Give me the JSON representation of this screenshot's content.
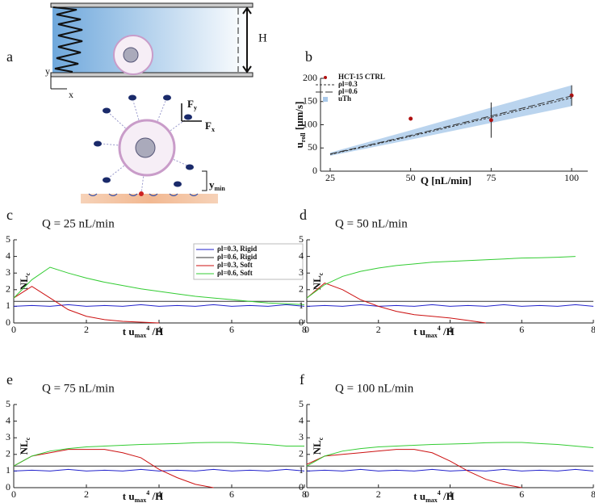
{
  "diagram": {
    "label": "a",
    "height_label": "H",
    "y_axis": "y",
    "x_axis": "x",
    "force_y": [
      "F",
      "y"
    ],
    "force_x": [
      "F",
      "x"
    ],
    "gap": [
      "y",
      "min"
    ]
  },
  "chart_data": [
    {
      "type": "scatter",
      "label": "b",
      "xlabel": "Q [nL/min]",
      "ylabel": [
        "u",
        "roll",
        " [μm/s]"
      ],
      "x": [
        25,
        50,
        75,
        100
      ],
      "xlim": [
        22,
        105
      ],
      "xticks": [
        25,
        50,
        75,
        100
      ],
      "ylim": [
        0,
        200
      ],
      "yticks": [
        0,
        50,
        100,
        150,
        200
      ],
      "series": [
        {
          "name": "HCT-15 CTRL",
          "color": "#b01010",
          "kind": "points",
          "values": [
            null,
            113,
            110,
            163
          ],
          "errors": [
            null,
            4,
            38,
            22
          ]
        },
        {
          "name": "ρl=0.3",
          "color": "#333333",
          "kind": "line",
          "dash": "3,2",
          "values": [
            36,
            75,
            116,
            158
          ]
        },
        {
          "name": "ρl=0.6",
          "color": "#333333",
          "kind": "line",
          "dash": "9,3",
          "values": [
            37,
            77,
            119,
            162
          ]
        },
        {
          "name": "uTh",
          "color": "#a9c9ea",
          "kind": "band",
          "lower": [
            33,
            68,
            104,
            140
          ],
          "upper": [
            40,
            88,
            137,
            185
          ]
        }
      ]
    },
    {
      "type": "line",
      "label": "c",
      "title": "Q = 25 nL/min",
      "xlabel": [
        "t u",
        "max",
        "4",
        " /H"
      ],
      "ylabel": [
        "NL",
        "c"
      ],
      "legend": true,
      "x": [
        0,
        0.5,
        1,
        1.5,
        2,
        2.5,
        3,
        3.5,
        4,
        4.5,
        5,
        5.5,
        6,
        6.5,
        7,
        7.5,
        8
      ],
      "xlim": [
        0,
        8
      ],
      "xticks": [
        0,
        2,
        4,
        6,
        8
      ],
      "ylim": [
        0,
        5
      ],
      "yticks": [
        0,
        1,
        2,
        3,
        4,
        5
      ],
      "series": [
        {
          "name": "ρl=0.3, Rigid",
          "color": "#2222cc",
          "values": [
            1.0,
            1.05,
            1.0,
            1.1,
            1.0,
            1.05,
            1.0,
            1.1,
            1.0,
            1.05,
            1.0,
            1.1,
            1.0,
            1.05,
            1.0,
            1.1,
            1.0
          ]
        },
        {
          "name": "ρl=0.6, Rigid",
          "color": "#333333",
          "values": [
            1.3,
            1.3,
            1.3,
            1.3,
            1.3,
            1.3,
            1.3,
            1.3,
            1.3,
            1.3,
            1.3,
            1.3,
            1.3,
            1.3,
            1.3,
            1.3,
            1.3
          ]
        },
        {
          "name": "ρl=0.3, Soft",
          "color": "#cc1111",
          "values": [
            1.5,
            2.2,
            1.5,
            0.8,
            0.4,
            0.2,
            0.1,
            0.05,
            0,
            null,
            null,
            null,
            null,
            null,
            null,
            null,
            null
          ]
        },
        {
          "name": "ρl=0.6, Soft",
          "color": "#33cc33",
          "values": [
            1.5,
            2.6,
            3.35,
            3.0,
            2.7,
            2.45,
            2.25,
            2.05,
            1.9,
            1.75,
            1.6,
            1.5,
            1.4,
            1.3,
            1.2,
            1.15,
            1.1
          ]
        }
      ]
    },
    {
      "type": "line",
      "label": "d",
      "title": "Q = 50 nL/min",
      "xlabel": [
        "t u",
        "max",
        "4",
        " /H"
      ],
      "ylabel": [
        "NL",
        "c"
      ],
      "x": [
        0,
        0.5,
        1,
        1.5,
        2,
        2.5,
        3,
        3.5,
        4,
        4.5,
        5,
        5.5,
        6,
        6.5,
        7,
        7.5,
        8
      ],
      "xlim": [
        0,
        8
      ],
      "xticks": [
        0,
        2,
        4,
        6,
        8
      ],
      "ylim": [
        0,
        5
      ],
      "yticks": [
        0,
        1,
        2,
        3,
        4,
        5
      ],
      "series": [
        {
          "color": "#2222cc",
          "values": [
            1.0,
            1.05,
            1.0,
            1.1,
            1.0,
            1.05,
            1.0,
            1.1,
            1.0,
            1.05,
            1.0,
            1.1,
            1.0,
            1.05,
            1.0,
            1.1,
            1.0
          ]
        },
        {
          "color": "#333333",
          "values": [
            1.3,
            1.3,
            1.3,
            1.3,
            1.3,
            1.3,
            1.3,
            1.3,
            1.3,
            1.3,
            1.3,
            1.3,
            1.3,
            1.3,
            1.3,
            1.3,
            1.3
          ]
        },
        {
          "color": "#cc1111",
          "values": [
            1.5,
            2.4,
            2.0,
            1.4,
            1.0,
            0.7,
            0.5,
            0.4,
            0.3,
            0.15,
            0,
            null,
            null,
            null,
            null,
            null,
            null
          ]
        },
        {
          "color": "#33cc33",
          "values": [
            1.5,
            2.3,
            2.8,
            3.1,
            3.3,
            3.45,
            3.55,
            3.65,
            3.7,
            3.75,
            3.8,
            3.85,
            3.9,
            3.92,
            3.95,
            4.0,
            null
          ]
        }
      ]
    },
    {
      "type": "line",
      "label": "e",
      "title": "Q = 75 nL/min",
      "xlabel": [
        "t u",
        "max",
        "4",
        " /H"
      ],
      "ylabel": [
        "NL",
        "c"
      ],
      "x": [
        0,
        0.5,
        1,
        1.5,
        2,
        2.5,
        3,
        3.5,
        4,
        4.5,
        5,
        5.5,
        6,
        6.5,
        7,
        7.5,
        8
      ],
      "xlim": [
        0,
        8
      ],
      "xticks": [
        0,
        2,
        4,
        6,
        8
      ],
      "ylim": [
        0,
        5
      ],
      "yticks": [
        0,
        1,
        2,
        3,
        4,
        5
      ],
      "series": [
        {
          "color": "#2222cc",
          "values": [
            1.0,
            1.05,
            1.0,
            1.1,
            1.0,
            1.05,
            1.0,
            1.1,
            1.0,
            1.05,
            1.0,
            1.1,
            1.0,
            1.05,
            1.0,
            1.1,
            1.0
          ]
        },
        {
          "color": "#333333",
          "values": [
            1.3,
            1.3,
            1.3,
            1.3,
            1.3,
            1.3,
            1.3,
            1.3,
            1.3,
            1.3,
            1.3,
            1.3,
            1.3,
            1.3,
            1.3,
            1.3,
            1.3
          ]
        },
        {
          "color": "#cc1111",
          "values": [
            1.3,
            1.9,
            2.1,
            2.3,
            2.3,
            2.3,
            2.1,
            1.8,
            1.1,
            0.6,
            0.2,
            0,
            null,
            null,
            null,
            null,
            null
          ]
        },
        {
          "color": "#33cc33",
          "values": [
            1.3,
            1.9,
            2.2,
            2.35,
            2.45,
            2.5,
            2.55,
            2.6,
            2.62,
            2.65,
            2.7,
            2.72,
            2.72,
            2.65,
            2.6,
            2.5,
            2.5
          ]
        }
      ]
    },
    {
      "type": "line",
      "label": "f",
      "title": "Q = 100 nL/min",
      "xlabel": [
        "t u",
        "max",
        "4",
        " /H"
      ],
      "ylabel": [
        "NL",
        "c"
      ],
      "x": [
        0,
        0.5,
        1,
        1.5,
        2,
        2.5,
        3,
        3.5,
        4,
        4.5,
        5,
        5.5,
        6,
        6.5,
        7,
        7.5,
        8
      ],
      "xlim": [
        0,
        8
      ],
      "xticks": [
        0,
        2,
        4,
        6,
        8
      ],
      "ylim": [
        0,
        5
      ],
      "yticks": [
        0,
        1,
        2,
        3,
        4,
        5
      ],
      "series": [
        {
          "color": "#2222cc",
          "values": [
            1.0,
            1.05,
            1.0,
            1.1,
            1.0,
            1.05,
            1.0,
            1.1,
            1.0,
            1.05,
            1.0,
            1.1,
            1.0,
            1.05,
            1.0,
            1.1,
            1.0
          ]
        },
        {
          "color": "#333333",
          "values": [
            1.3,
            1.3,
            1.3,
            1.3,
            1.3,
            1.3,
            1.3,
            1.3,
            1.3,
            1.3,
            1.3,
            1.3,
            1.3,
            1.3,
            1.3,
            1.3,
            1.3
          ]
        },
        {
          "color": "#cc1111",
          "values": [
            1.4,
            1.9,
            2.0,
            2.1,
            2.2,
            2.3,
            2.3,
            2.1,
            1.6,
            1.0,
            0.5,
            0.2,
            0,
            null,
            null,
            null,
            null
          ]
        },
        {
          "color": "#33cc33",
          "values": [
            1.3,
            1.9,
            2.2,
            2.35,
            2.45,
            2.5,
            2.55,
            2.6,
            2.62,
            2.65,
            2.7,
            2.72,
            2.72,
            2.65,
            2.6,
            2.5,
            2.4
          ]
        }
      ]
    }
  ]
}
